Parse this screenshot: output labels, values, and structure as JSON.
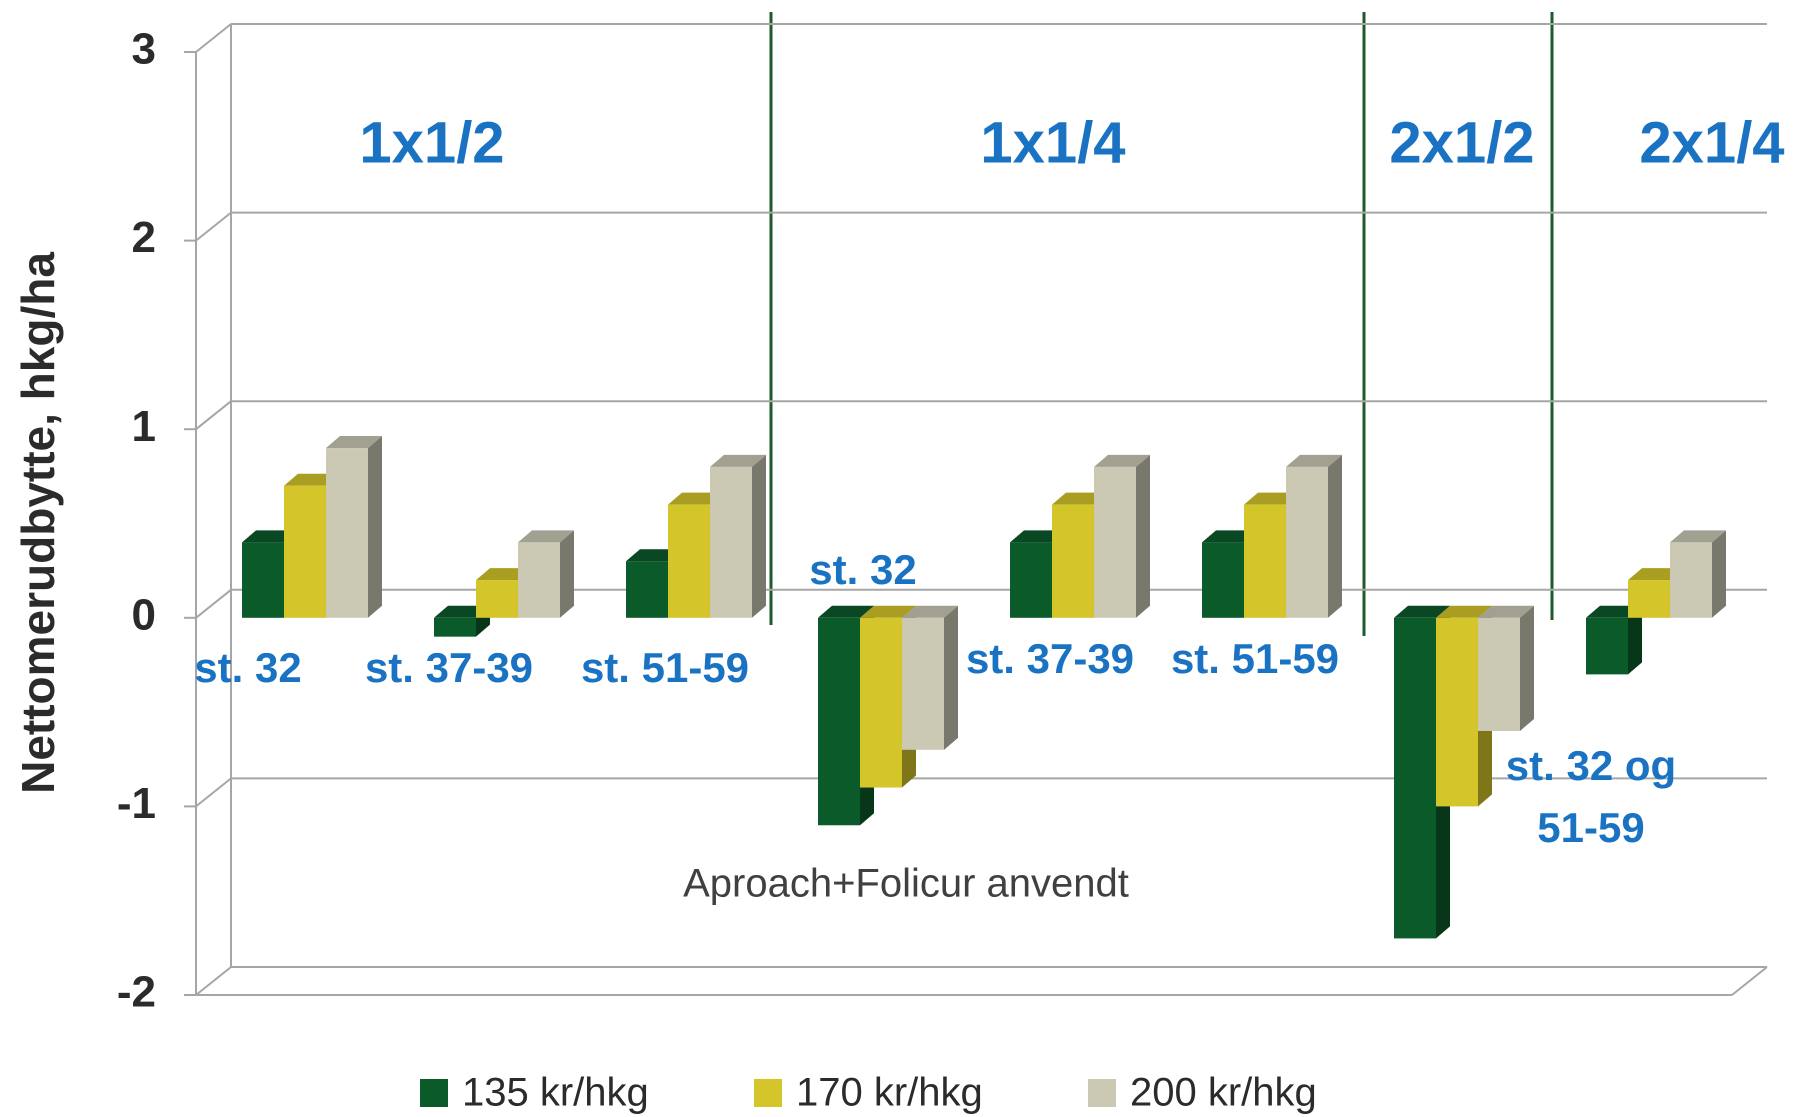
{
  "chart_data": {
    "type": "bar3d",
    "y_label": "Nettomerudbytte, hkg/ha",
    "annotation": "Aproach+Folicur anvendt",
    "sections": [
      "1x1/2",
      "1x1/4",
      "2x1/2",
      "2x1/4"
    ],
    "categories": [
      "st. 32",
      "st. 37-39",
      "st. 51-59",
      "st. 32",
      "st. 37-39",
      "st. 51-59",
      "st. 32 og 51-59",
      null
    ],
    "series": [
      {
        "name": "135 kr/hkg",
        "color": "#0b5a2a",
        "values": [
          0.4,
          -0.1,
          0.3,
          -1.1,
          0.4,
          0.4,
          -1.7,
          -0.3
        ]
      },
      {
        "name": "170 kr/hkg",
        "color": "#d4c52a",
        "values": [
          0.7,
          0.2,
          0.6,
          -0.9,
          0.6,
          0.6,
          -1.0,
          0.2
        ]
      },
      {
        "name": "200 kr/hkg",
        "color": "#cbc8b4",
        "values": [
          0.9,
          0.4,
          0.8,
          -0.7,
          0.8,
          0.8,
          -0.6,
          0.4
        ]
      }
    ],
    "ylim": [
      -2,
      3
    ],
    "yticks": [
      -2,
      -1,
      0,
      1,
      2,
      3
    ],
    "grid": true,
    "legend": "bottom"
  }
}
